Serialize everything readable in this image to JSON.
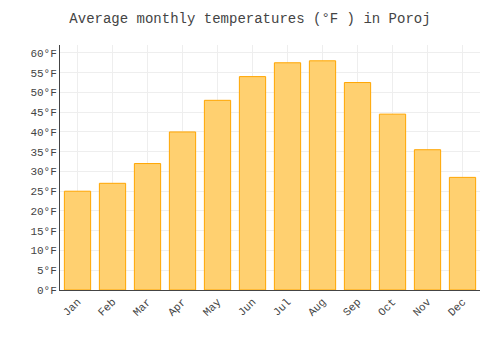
{
  "chart_data": {
    "type": "bar",
    "title": "Average monthly temperatures (°F ) in Poroj",
    "categories": [
      "Jan",
      "Feb",
      "Mar",
      "Apr",
      "May",
      "Jun",
      "Jul",
      "Aug",
      "Sep",
      "Oct",
      "Nov",
      "Dec"
    ],
    "values": [
      25,
      27,
      32,
      40,
      48,
      54,
      57.5,
      58,
      52.5,
      44.5,
      35.5,
      28.5
    ],
    "color": "#FFD070",
    "ylim": [
      0,
      62
    ],
    "yticks": [
      {
        "value": 0,
        "label": "0°F"
      },
      {
        "value": 5,
        "label": "5°F"
      },
      {
        "value": 10,
        "label": "10°F"
      },
      {
        "value": 15,
        "label": "15°F"
      },
      {
        "value": 20,
        "label": "20°F"
      },
      {
        "value": 25,
        "label": "25°F"
      },
      {
        "value": 30,
        "label": "30°F"
      },
      {
        "value": 35,
        "label": "35°F"
      },
      {
        "value": 40,
        "label": "40°F"
      },
      {
        "value": 45,
        "label": "45°F"
      },
      {
        "value": 50,
        "label": "50°F"
      },
      {
        "value": 55,
        "label": "55°F"
      },
      {
        "value": 60,
        "label": "60°F"
      }
    ],
    "grid": true
  }
}
